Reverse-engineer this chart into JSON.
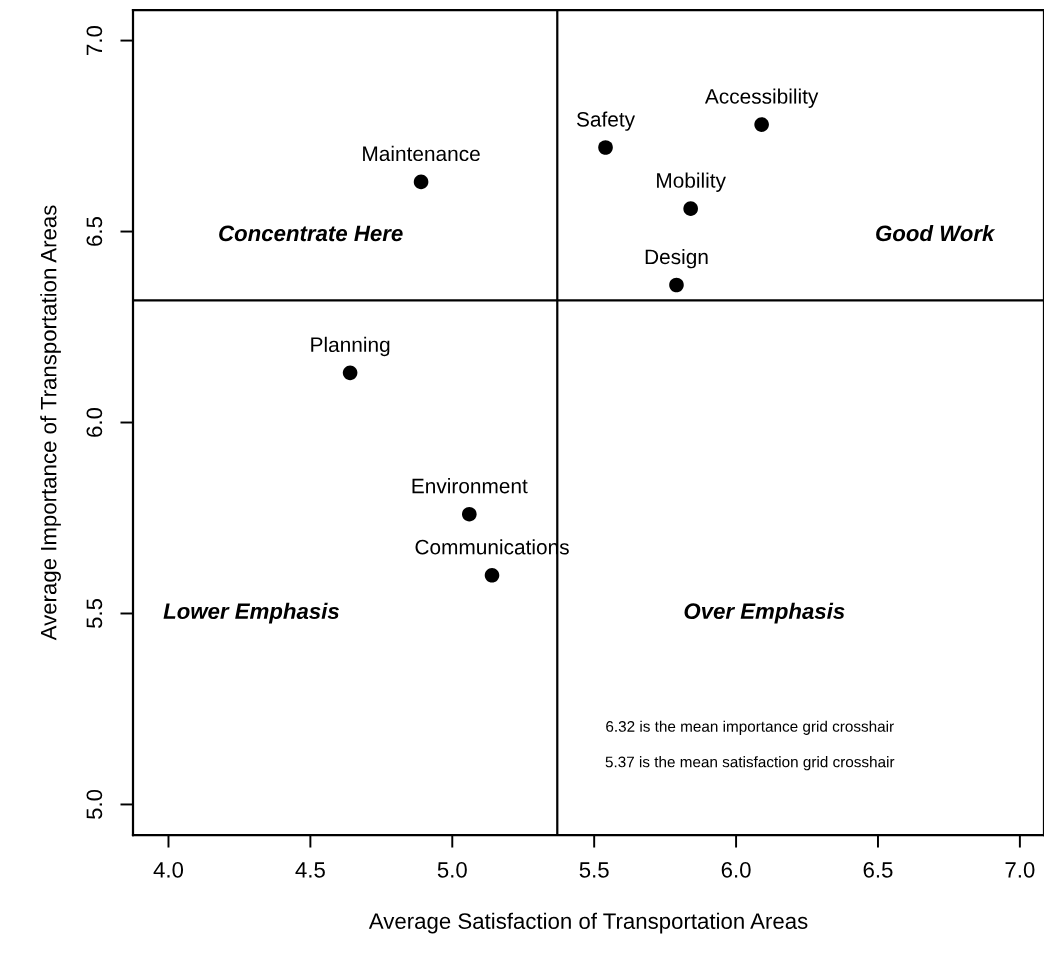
{
  "chart_data": {
    "type": "scatter",
    "xlabel": "Average Satisfaction of Transportation Areas",
    "ylabel": "Average Importance of Transportation Areas",
    "x": [
      4.89,
      5.54,
      6.09,
      5.84,
      5.79,
      4.64,
      5.06,
      5.14
    ],
    "series": [
      {
        "color": "#000000",
        "values": [
          6.63,
          6.72,
          6.78,
          6.56,
          6.36,
          6.13,
          5.76,
          5.6
        ]
      }
    ],
    "marker": "circle",
    "xlim": [
      3.875,
      7.085
    ],
    "xticks": [
      {
        "value": 4,
        "label": "4.0"
      },
      4.5,
      {
        "value": 5,
        "label": "5.0"
      },
      5.5,
      {
        "value": 6,
        "label": "6.0"
      },
      6.5,
      {
        "value": 7,
        "label": "7.0"
      }
    ],
    "ylim": [
      4.92,
      7.08
    ],
    "yticks": [
      {
        "value": 5,
        "label": "5.0"
      },
      5.5,
      {
        "value": 6,
        "label": "6.0"
      },
      6.5,
      {
        "value": 7,
        "label": "7.0"
      }
    ],
    "ref_lines": [
      {
        "axis": "x",
        "value": 5.37,
        "color": "#000000"
      },
      {
        "axis": "y",
        "value": 6.32,
        "color": "#000000"
      }
    ],
    "annotations": [
      {
        "text": "Maintenance",
        "x": 4.89,
        "y": 6.63
      },
      {
        "text": "Safety",
        "x": 5.54,
        "y": 6.72
      },
      {
        "text": "Accessibility",
        "x": 6.09,
        "y": 6.78
      },
      {
        "text": "Mobility",
        "x": 5.84,
        "y": 6.56
      },
      {
        "text": "Design",
        "x": 5.79,
        "y": 6.36
      },
      {
        "text": "Planning",
        "x": 4.64,
        "y": 6.13
      },
      {
        "text": "Environment",
        "x": 5.06,
        "y": 5.76
      },
      {
        "text": "Communications",
        "x": 5.14,
        "y": 5.6
      },
      "Concentrate Here",
      "Good Work",
      "Lower Emphasis",
      "Over Emphasis",
      "6.32 is the mean importance grid crosshair",
      "5.37 is the mean satisfaction grid crosshair"
    ],
    "grid": false
  }
}
